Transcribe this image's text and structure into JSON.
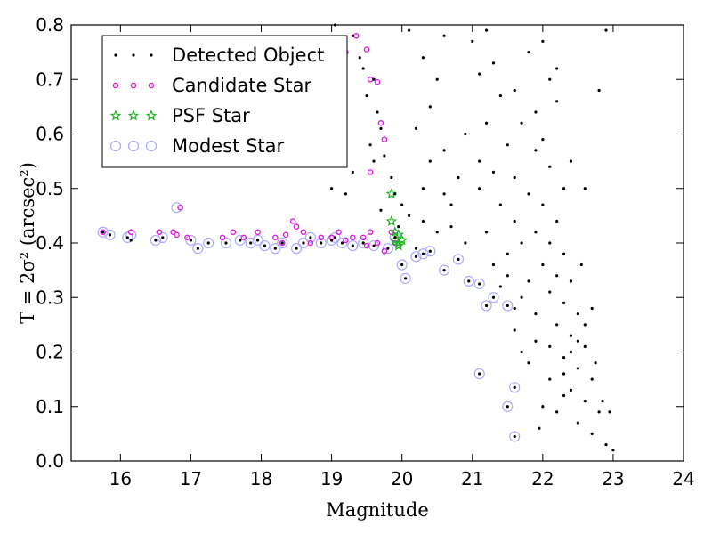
{
  "chart_data": {
    "type": "scatter",
    "xlabel": "Magnitude",
    "ylabel": "T = 2σ² (arcsec²)",
    "xlim": [
      15.3,
      24
    ],
    "ylim": [
      0.0,
      0.8
    ],
    "xticks": [
      "16",
      "17",
      "18",
      "19",
      "20",
      "21",
      "22",
      "23",
      "24"
    ],
    "yticks": [
      "0.0",
      "0.1",
      "0.2",
      "0.3",
      "0.4",
      "0.5",
      "0.6",
      "0.7",
      "0.8"
    ],
    "grid": false,
    "legend_position": "top-left",
    "series": [
      {
        "name": "Detected Object",
        "marker": "dot",
        "color": "#000000",
        "points": [
          [
            15.75,
            0.42
          ],
          [
            15.85,
            0.415
          ],
          [
            16.1,
            0.41
          ],
          [
            16.15,
            0.405
          ],
          [
            16.5,
            0.405
          ],
          [
            16.6,
            0.41
          ],
          [
            17.0,
            0.405
          ],
          [
            17.1,
            0.39
          ],
          [
            17.25,
            0.4
          ],
          [
            17.5,
            0.4
          ],
          [
            17.7,
            0.405
          ],
          [
            17.85,
            0.4
          ],
          [
            17.95,
            0.405
          ],
          [
            18.05,
            0.395
          ],
          [
            18.2,
            0.39
          ],
          [
            18.3,
            0.4
          ],
          [
            18.5,
            0.39
          ],
          [
            18.6,
            0.4
          ],
          [
            18.7,
            0.41
          ],
          [
            18.85,
            0.4
          ],
          [
            19.0,
            0.405
          ],
          [
            19.05,
            0.41
          ],
          [
            19.15,
            0.4
          ],
          [
            19.3,
            0.395
          ],
          [
            19.45,
            0.4
          ],
          [
            19.6,
            0.395
          ],
          [
            19.8,
            0.39
          ],
          [
            19.9,
            0.41
          ],
          [
            20.0,
            0.36
          ],
          [
            20.05,
            0.335
          ],
          [
            20.2,
            0.375
          ],
          [
            20.3,
            0.38
          ],
          [
            20.4,
            0.385
          ],
          [
            20.6,
            0.35
          ],
          [
            20.8,
            0.37
          ],
          [
            20.95,
            0.33
          ],
          [
            21.1,
            0.325
          ],
          [
            21.2,
            0.285
          ],
          [
            21.3,
            0.3
          ],
          [
            21.5,
            0.285
          ],
          [
            21.6,
            0.28
          ],
          [
            21.1,
            0.16
          ],
          [
            21.5,
            0.1
          ],
          [
            21.6,
            0.135
          ],
          [
            21.6,
            0.045
          ],
          [
            19.05,
            0.8
          ],
          [
            19.3,
            0.78
          ],
          [
            19.4,
            0.74
          ],
          [
            19.45,
            0.72
          ],
          [
            19.6,
            0.7
          ],
          [
            19.5,
            0.67
          ],
          [
            19.65,
            0.64
          ],
          [
            19.7,
            0.61
          ],
          [
            19.55,
            0.58
          ],
          [
            19.75,
            0.56
          ],
          [
            19.6,
            0.55
          ],
          [
            19.3,
            0.53
          ],
          [
            19.85,
            0.52
          ],
          [
            19.0,
            0.5
          ],
          [
            19.2,
            0.49
          ],
          [
            19.9,
            0.49
          ],
          [
            20.0,
            0.47
          ],
          [
            19.7,
            0.46
          ],
          [
            20.1,
            0.45
          ],
          [
            19.95,
            0.43
          ],
          [
            20.1,
            0.79
          ],
          [
            20.3,
            0.74
          ],
          [
            20.5,
            0.7
          ],
          [
            20.4,
            0.65
          ],
          [
            20.2,
            0.61
          ],
          [
            20.6,
            0.57
          ],
          [
            20.8,
            0.52
          ],
          [
            20.7,
            0.47
          ],
          [
            20.3,
            0.44
          ],
          [
            20.5,
            0.42
          ],
          [
            20.9,
            0.4
          ],
          [
            20.2,
            0.39
          ],
          [
            20.7,
            0.43
          ],
          [
            20.9,
            0.6
          ],
          [
            21.0,
            0.77
          ],
          [
            21.1,
            0.71
          ],
          [
            20.6,
            0.78
          ],
          [
            20.4,
            0.55
          ],
          [
            20.3,
            0.5
          ],
          [
            20.6,
            0.49
          ],
          [
            21.2,
            0.79
          ],
          [
            21.3,
            0.73
          ],
          [
            21.4,
            0.67
          ],
          [
            21.2,
            0.62
          ],
          [
            21.5,
            0.58
          ],
          [
            21.3,
            0.53
          ],
          [
            21.1,
            0.5
          ],
          [
            21.4,
            0.47
          ],
          [
            21.6,
            0.44
          ],
          [
            21.2,
            0.42
          ],
          [
            21.7,
            0.4
          ],
          [
            21.5,
            0.38
          ],
          [
            21.3,
            0.36
          ],
          [
            21.1,
            0.55
          ],
          [
            21.6,
            0.68
          ],
          [
            21.8,
            0.75
          ],
          [
            21.7,
            0.62
          ],
          [
            21.9,
            0.57
          ],
          [
            21.8,
            0.49
          ],
          [
            21.6,
            0.52
          ],
          [
            22.0,
            0.77
          ],
          [
            22.1,
            0.7
          ],
          [
            22.2,
            0.66
          ],
          [
            21.9,
            0.64
          ],
          [
            22.0,
            0.59
          ],
          [
            22.1,
            0.54
          ],
          [
            22.3,
            0.5
          ],
          [
            22.0,
            0.47
          ],
          [
            22.2,
            0.44
          ],
          [
            21.9,
            0.42
          ],
          [
            22.1,
            0.4
          ],
          [
            22.3,
            0.38
          ],
          [
            22.0,
            0.36
          ],
          [
            22.2,
            0.34
          ],
          [
            22.4,
            0.33
          ],
          [
            22.1,
            0.31
          ],
          [
            22.3,
            0.29
          ],
          [
            22.5,
            0.27
          ],
          [
            22.2,
            0.25
          ],
          [
            22.4,
            0.23
          ],
          [
            22.6,
            0.21
          ],
          [
            22.3,
            0.19
          ],
          [
            22.5,
            0.17
          ],
          [
            22.7,
            0.15
          ],
          [
            22.4,
            0.13
          ],
          [
            22.6,
            0.11
          ],
          [
            22.8,
            0.09
          ],
          [
            22.5,
            0.07
          ],
          [
            22.7,
            0.05
          ],
          [
            22.9,
            0.03
          ],
          [
            23.0,
            0.02
          ],
          [
            22.85,
            0.11
          ],
          [
            22.95,
            0.09
          ],
          [
            22.75,
            0.18
          ],
          [
            22.55,
            0.36
          ],
          [
            22.8,
            0.68
          ],
          [
            22.9,
            0.79
          ],
          [
            22.4,
            0.55
          ],
          [
            22.6,
            0.5
          ],
          [
            22.2,
            0.72
          ],
          [
            21.9,
            0.27
          ],
          [
            21.7,
            0.3
          ],
          [
            21.8,
            0.33
          ],
          [
            21.4,
            0.32
          ],
          [
            21.5,
            0.34
          ],
          [
            21.9,
            0.22
          ],
          [
            21.8,
            0.18
          ],
          [
            22.1,
            0.15
          ],
          [
            22.0,
            0.1
          ],
          [
            21.95,
            0.06
          ],
          [
            22.2,
            0.09
          ],
          [
            22.3,
            0.12
          ],
          [
            21.6,
            0.24
          ],
          [
            21.7,
            0.2
          ],
          [
            22.4,
            0.2
          ],
          [
            22.5,
            0.22
          ],
          [
            22.6,
            0.25
          ],
          [
            22.7,
            0.28
          ],
          [
            22.3,
            0.16
          ],
          [
            22.1,
            0.21
          ]
        ]
      },
      {
        "name": "Candidate Star",
        "marker": "circle",
        "color": "#e020e0",
        "points": [
          [
            15.75,
            0.42
          ],
          [
            16.15,
            0.42
          ],
          [
            16.55,
            0.42
          ],
          [
            16.75,
            0.42
          ],
          [
            16.8,
            0.415
          ],
          [
            16.85,
            0.465
          ],
          [
            16.95,
            0.41
          ],
          [
            17.45,
            0.41
          ],
          [
            17.6,
            0.42
          ],
          [
            17.75,
            0.41
          ],
          [
            17.95,
            0.42
          ],
          [
            18.2,
            0.41
          ],
          [
            18.3,
            0.4
          ],
          [
            18.35,
            0.415
          ],
          [
            18.45,
            0.44
          ],
          [
            18.5,
            0.43
          ],
          [
            18.6,
            0.42
          ],
          [
            18.7,
            0.4
          ],
          [
            18.85,
            0.41
          ],
          [
            19.0,
            0.41
          ],
          [
            19.1,
            0.42
          ],
          [
            19.2,
            0.405
          ],
          [
            19.3,
            0.41
          ],
          [
            19.45,
            0.41
          ],
          [
            19.55,
            0.42
          ],
          [
            19.5,
            0.395
          ],
          [
            19.65,
            0.4
          ],
          [
            19.75,
            0.385
          ],
          [
            19.85,
            0.42
          ],
          [
            19.9,
            0.4
          ],
          [
            19.2,
            0.75
          ],
          [
            19.35,
            0.78
          ],
          [
            19.5,
            0.755
          ],
          [
            19.55,
            0.7
          ],
          [
            19.65,
            0.695
          ],
          [
            19.75,
            0.59
          ],
          [
            19.7,
            0.62
          ],
          [
            19.55,
            0.53
          ]
        ]
      },
      {
        "name": "PSF Star",
        "marker": "star",
        "color": "#20b020",
        "points": [
          [
            19.85,
            0.49
          ],
          [
            19.85,
            0.44
          ],
          [
            19.9,
            0.42
          ],
          [
            19.95,
            0.415
          ],
          [
            19.9,
            0.405
          ],
          [
            19.95,
            0.4
          ],
          [
            20.0,
            0.405
          ],
          [
            19.95,
            0.395
          ]
        ]
      },
      {
        "name": "Modest Star",
        "marker": "ring",
        "color": "#aaaaff",
        "points": [
          [
            15.75,
            0.42
          ],
          [
            15.85,
            0.415
          ],
          [
            16.1,
            0.41
          ],
          [
            16.15,
            0.415
          ],
          [
            16.5,
            0.405
          ],
          [
            16.6,
            0.41
          ],
          [
            16.8,
            0.465
          ],
          [
            17.0,
            0.405
          ],
          [
            17.1,
            0.39
          ],
          [
            17.25,
            0.4
          ],
          [
            17.5,
            0.4
          ],
          [
            17.7,
            0.405
          ],
          [
            17.85,
            0.4
          ],
          [
            17.95,
            0.405
          ],
          [
            18.05,
            0.395
          ],
          [
            18.2,
            0.39
          ],
          [
            18.3,
            0.4
          ],
          [
            18.5,
            0.39
          ],
          [
            18.6,
            0.4
          ],
          [
            18.7,
            0.41
          ],
          [
            18.85,
            0.4
          ],
          [
            19.0,
            0.405
          ],
          [
            19.05,
            0.41
          ],
          [
            19.15,
            0.4
          ],
          [
            19.3,
            0.395
          ],
          [
            19.45,
            0.4
          ],
          [
            19.6,
            0.395
          ],
          [
            19.8,
            0.39
          ],
          [
            19.9,
            0.41
          ],
          [
            20.0,
            0.36
          ],
          [
            20.05,
            0.335
          ],
          [
            20.2,
            0.375
          ],
          [
            20.3,
            0.38
          ],
          [
            20.4,
            0.385
          ],
          [
            20.6,
            0.35
          ],
          [
            20.8,
            0.37
          ],
          [
            20.95,
            0.33
          ],
          [
            21.1,
            0.325
          ],
          [
            21.2,
            0.285
          ],
          [
            21.3,
            0.3
          ],
          [
            21.5,
            0.285
          ],
          [
            21.1,
            0.16
          ],
          [
            21.5,
            0.1
          ],
          [
            21.6,
            0.135
          ],
          [
            21.6,
            0.045
          ]
        ]
      }
    ]
  }
}
